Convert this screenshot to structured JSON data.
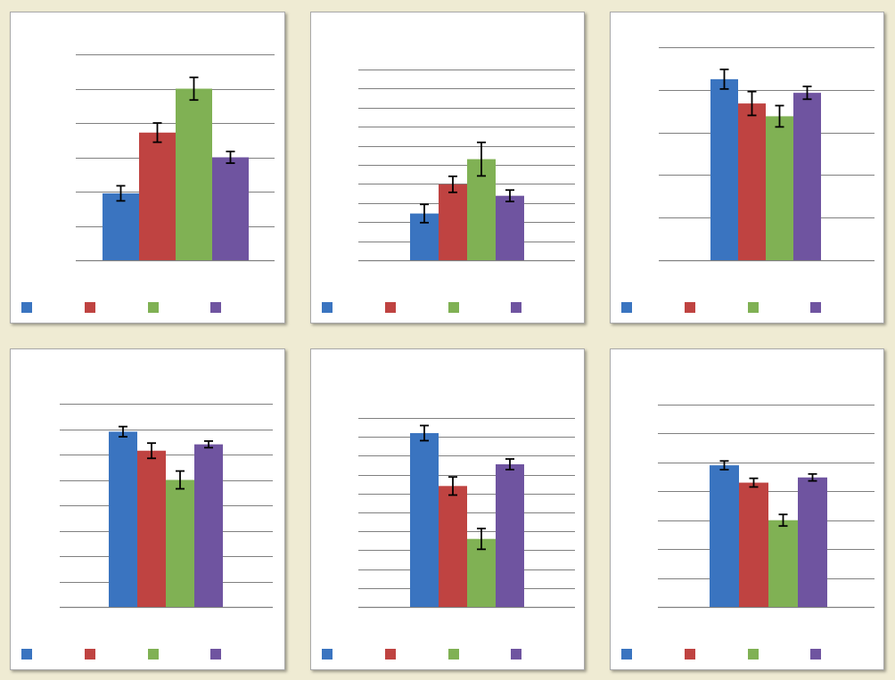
{
  "colors": {
    "series": [
      "#3a74c0",
      "#bf4341",
      "#80b154",
      "#6f54a0"
    ],
    "gridline": "#7f7f7f",
    "error_bar": "#000000",
    "background": "#efebd3",
    "panel": "#ffffff"
  },
  "chart_data": [
    {
      "type": "bar",
      "categories": [
        ""
      ],
      "ylim": [
        0,
        6
      ],
      "grid": true,
      "legend": "bottom",
      "series": [
        {
          "values": [
            1.95
          ],
          "error": [
            0.22
          ]
        },
        {
          "values": [
            3.72
          ],
          "error": [
            0.28
          ]
        },
        {
          "values": [
            5.0
          ],
          "error": [
            0.33
          ]
        },
        {
          "values": [
            3.0
          ],
          "error": [
            0.17
          ]
        }
      ]
    },
    {
      "type": "bar",
      "categories": [
        ""
      ],
      "ylim": [
        0,
        10
      ],
      "grid": true,
      "legend": "bottom",
      "series": [
        {
          "values": [
            2.45
          ],
          "error": [
            0.48
          ]
        },
        {
          "values": [
            3.98
          ],
          "error": [
            0.42
          ]
        },
        {
          "values": [
            5.3
          ],
          "error": [
            0.88
          ]
        },
        {
          "values": [
            3.38
          ],
          "error": [
            0.3
          ]
        }
      ]
    },
    {
      "type": "bar",
      "categories": [
        ""
      ],
      "ylim": [
        0,
        5
      ],
      "grid": true,
      "legend": "bottom",
      "series": [
        {
          "values": [
            4.25
          ],
          "error": [
            0.23
          ]
        },
        {
          "values": [
            3.68
          ],
          "error": [
            0.28
          ]
        },
        {
          "values": [
            3.38
          ],
          "error": [
            0.25
          ]
        },
        {
          "values": [
            3.93
          ],
          "error": [
            0.15
          ]
        }
      ]
    },
    {
      "type": "bar",
      "categories": [
        ""
      ],
      "ylim": [
        0,
        8
      ],
      "grid": true,
      "legend": "bottom",
      "series": [
        {
          "values": [
            6.9
          ],
          "error": [
            0.2
          ]
        },
        {
          "values": [
            6.15
          ],
          "error": [
            0.3
          ]
        },
        {
          "values": [
            5.0
          ],
          "error": [
            0.35
          ]
        },
        {
          "values": [
            6.4
          ],
          "error": [
            0.13
          ]
        }
      ]
    },
    {
      "type": "bar",
      "categories": [
        ""
      ],
      "ylim": [
        0,
        10
      ],
      "grid": true,
      "legend": "bottom",
      "series": [
        {
          "values": [
            9.2
          ],
          "error": [
            0.4
          ]
        },
        {
          "values": [
            6.4
          ],
          "error": [
            0.48
          ]
        },
        {
          "values": [
            3.6
          ],
          "error": [
            0.55
          ]
        },
        {
          "values": [
            7.55
          ],
          "error": [
            0.28
          ]
        }
      ]
    },
    {
      "type": "bar",
      "categories": [
        ""
      ],
      "ylim": [
        0,
        7
      ],
      "grid": true,
      "legend": "bottom",
      "series": [
        {
          "values": [
            4.9
          ],
          "error": [
            0.15
          ]
        },
        {
          "values": [
            4.3
          ],
          "error": [
            0.15
          ]
        },
        {
          "values": [
            3.0
          ],
          "error": [
            0.2
          ]
        },
        {
          "values": [
            4.48
          ],
          "error": [
            0.12
          ]
        }
      ]
    }
  ]
}
